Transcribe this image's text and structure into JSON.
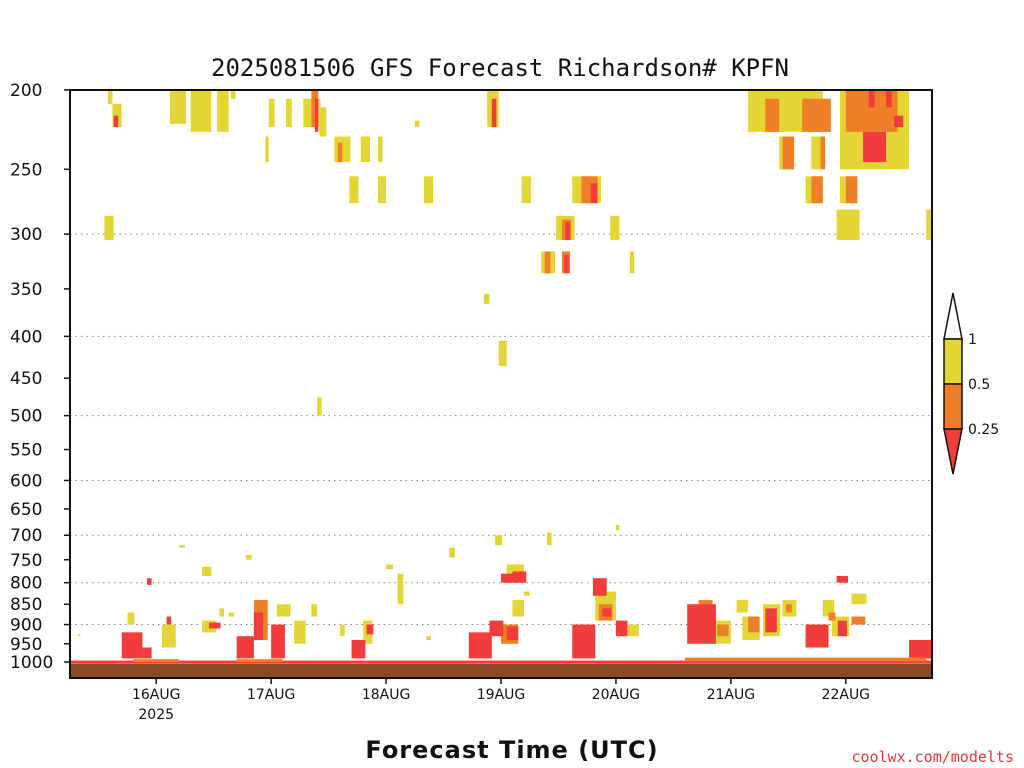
{
  "chart_data": {
    "type": "heatmap",
    "title": "2025081506 GFS Forecast Richardson# KPFN",
    "xlabel": "Forecast Time (UTC)",
    "credit": "coolwx.com/modelts",
    "y_scale": "log-pressure",
    "ylim": [
      1000,
      200
    ],
    "xlim_days": [
      -0.75,
      6.75
    ],
    "y_ticks": [
      200,
      250,
      300,
      350,
      400,
      450,
      500,
      550,
      600,
      650,
      700,
      750,
      800,
      850,
      900,
      950,
      1000
    ],
    "y_grid_levels": [
      300,
      400,
      500,
      600,
      700,
      800,
      900
    ],
    "x_ticks": [
      {
        "day": 0,
        "label": "16AUG",
        "sublabel": "2025"
      },
      {
        "day": 1,
        "label": "17AUG",
        "sublabel": ""
      },
      {
        "day": 2,
        "label": "18AUG",
        "sublabel": ""
      },
      {
        "day": 3,
        "label": "19AUG",
        "sublabel": ""
      },
      {
        "day": 4,
        "label": "20AUG",
        "sublabel": ""
      },
      {
        "day": 5,
        "label": "21AUG",
        "sublabel": ""
      },
      {
        "day": 6,
        "label": "22AUG",
        "sublabel": ""
      }
    ],
    "colorbar": {
      "levels": [
        "1",
        "0.5",
        "0.25"
      ],
      "bands": [
        {
          "range": "0.5-1",
          "color": "#e3d634"
        },
        {
          "range": "0.25-0.5",
          "color": "#ef7f27"
        },
        {
          "range": "<0.25",
          "color": "#f23c3c"
        }
      ],
      "top_color": "#ffffff"
    },
    "ground_color": "#8b4a23",
    "patches": [
      {
        "day": -0.42,
        "w": 0.04,
        "p1": 200,
        "p2": 208,
        "v": "y"
      },
      {
        "day": -0.38,
        "w": 0.08,
        "p1": 208,
        "p2": 222,
        "v": "y"
      },
      {
        "day": -0.37,
        "w": 0.04,
        "p1": 215,
        "p2": 222,
        "v": "r"
      },
      {
        "day": -0.45,
        "w": 0.08,
        "p1": 285,
        "p2": 305,
        "v": "y"
      },
      {
        "day": 0.12,
        "w": 0.14,
        "p1": 200,
        "p2": 220,
        "v": "y"
      },
      {
        "day": 0.3,
        "w": 0.18,
        "p1": 200,
        "p2": 225,
        "v": "y"
      },
      {
        "day": 0.53,
        "w": 0.1,
        "p1": 200,
        "p2": 225,
        "v": "y"
      },
      {
        "day": 0.65,
        "w": 0.04,
        "p1": 200,
        "p2": 205,
        "v": "y"
      },
      {
        "day": 0.98,
        "w": 0.05,
        "p1": 205,
        "p2": 222,
        "v": "y"
      },
      {
        "day": 1.13,
        "w": 0.05,
        "p1": 205,
        "p2": 222,
        "v": "y"
      },
      {
        "day": 1.28,
        "w": 0.15,
        "p1": 205,
        "p2": 222,
        "v": "y"
      },
      {
        "day": 1.35,
        "w": 0.06,
        "p1": 200,
        "p2": 222,
        "v": "o"
      },
      {
        "day": 1.38,
        "w": 0.03,
        "p1": 205,
        "p2": 225,
        "v": "r"
      },
      {
        "day": 1.42,
        "w": 0.06,
        "p1": 210,
        "p2": 228,
        "v": "y"
      },
      {
        "day": 0.95,
        "w": 0.03,
        "p1": 228,
        "p2": 245,
        "v": "y"
      },
      {
        "day": 1.55,
        "w": 0.14,
        "p1": 228,
        "p2": 245,
        "v": "y"
      },
      {
        "day": 1.58,
        "w": 0.04,
        "p1": 232,
        "p2": 245,
        "v": "o"
      },
      {
        "day": 1.78,
        "w": 0.08,
        "p1": 228,
        "p2": 245,
        "v": "y"
      },
      {
        "day": 1.93,
        "w": 0.04,
        "p1": 228,
        "p2": 245,
        "v": "y"
      },
      {
        "day": 1.68,
        "w": 0.08,
        "p1": 255,
        "p2": 275,
        "v": "y"
      },
      {
        "day": 1.93,
        "w": 0.07,
        "p1": 255,
        "p2": 275,
        "v": "y"
      },
      {
        "day": 2.25,
        "w": 0.04,
        "p1": 218,
        "p2": 222,
        "v": "y"
      },
      {
        "day": 2.33,
        "w": 0.08,
        "p1": 255,
        "p2": 275,
        "v": "y"
      },
      {
        "day": 2.88,
        "w": 0.1,
        "p1": 200,
        "p2": 222,
        "v": "y"
      },
      {
        "day": 2.92,
        "w": 0.04,
        "p1": 205,
        "p2": 222,
        "v": "r"
      },
      {
        "day": 3.18,
        "w": 0.08,
        "p1": 255,
        "p2": 275,
        "v": "y"
      },
      {
        "day": 2.85,
        "w": 0.05,
        "p1": 355,
        "p2": 365,
        "v": "y"
      },
      {
        "day": 2.98,
        "w": 0.07,
        "p1": 405,
        "p2": 435,
        "v": "y"
      },
      {
        "day": 1.4,
        "w": 0.04,
        "p1": 475,
        "p2": 500,
        "v": "y"
      },
      {
        "day": 3.62,
        "w": 0.25,
        "p1": 255,
        "p2": 275,
        "v": "y"
      },
      {
        "day": 3.7,
        "w": 0.14,
        "p1": 255,
        "p2": 275,
        "v": "o"
      },
      {
        "day": 3.78,
        "w": 0.06,
        "p1": 260,
        "p2": 275,
        "v": "r"
      },
      {
        "day": 3.48,
        "w": 0.16,
        "p1": 285,
        "p2": 305,
        "v": "y"
      },
      {
        "day": 3.53,
        "w": 0.08,
        "p1": 288,
        "p2": 305,
        "v": "o"
      },
      {
        "day": 3.56,
        "w": 0.04,
        "p1": 290,
        "p2": 305,
        "v": "r"
      },
      {
        "day": 3.35,
        "w": 0.12,
        "p1": 315,
        "p2": 335,
        "v": "y"
      },
      {
        "day": 3.38,
        "w": 0.05,
        "p1": 315,
        "p2": 335,
        "v": "o"
      },
      {
        "day": 3.53,
        "w": 0.07,
        "p1": 315,
        "p2": 335,
        "v": "o"
      },
      {
        "day": 3.55,
        "w": 0.04,
        "p1": 318,
        "p2": 335,
        "v": "r"
      },
      {
        "day": 3.95,
        "w": 0.08,
        "p1": 285,
        "p2": 305,
        "v": "y"
      },
      {
        "day": 4.12,
        "w": 0.04,
        "p1": 315,
        "p2": 335,
        "v": "y"
      },
      {
        "day": 5.15,
        "w": 0.65,
        "p1": 200,
        "p2": 225,
        "v": "y"
      },
      {
        "day": 5.3,
        "w": 0.12,
        "p1": 205,
        "p2": 225,
        "v": "o"
      },
      {
        "day": 5.62,
        "w": 0.25,
        "p1": 205,
        "p2": 225,
        "v": "o"
      },
      {
        "day": 5.42,
        "w": 0.13,
        "p1": 228,
        "p2": 250,
        "v": "y"
      },
      {
        "day": 5.45,
        "w": 0.1,
        "p1": 228,
        "p2": 250,
        "v": "o"
      },
      {
        "day": 5.7,
        "w": 0.12,
        "p1": 228,
        "p2": 250,
        "v": "y"
      },
      {
        "day": 5.78,
        "w": 0.04,
        "p1": 228,
        "p2": 250,
        "v": "o"
      },
      {
        "day": 5.95,
        "w": 0.6,
        "p1": 200,
        "p2": 250,
        "v": "y"
      },
      {
        "day": 6.0,
        "w": 0.45,
        "p1": 200,
        "p2": 225,
        "v": "o"
      },
      {
        "day": 6.2,
        "w": 0.05,
        "p1": 200,
        "p2": 210,
        "v": "r"
      },
      {
        "day": 6.35,
        "w": 0.05,
        "p1": 200,
        "p2": 210,
        "v": "r"
      },
      {
        "day": 6.42,
        "w": 0.08,
        "p1": 215,
        "p2": 222,
        "v": "r"
      },
      {
        "day": 6.15,
        "w": 0.2,
        "p1": 225,
        "p2": 245,
        "v": "r"
      },
      {
        "day": 5.65,
        "w": 0.15,
        "p1": 255,
        "p2": 275,
        "v": "y"
      },
      {
        "day": 5.7,
        "w": 0.1,
        "p1": 255,
        "p2": 275,
        "v": "o"
      },
      {
        "day": 5.95,
        "w": 0.15,
        "p1": 255,
        "p2": 275,
        "v": "y"
      },
      {
        "day": 6.0,
        "w": 0.1,
        "p1": 255,
        "p2": 275,
        "v": "o"
      },
      {
        "day": 5.92,
        "w": 0.2,
        "p1": 280,
        "p2": 305,
        "v": "y"
      },
      {
        "day": 6.7,
        "w": 0.05,
        "p1": 280,
        "p2": 305,
        "v": "y"
      },
      {
        "day": -0.68,
        "w": 0.02,
        "p1": 925,
        "p2": 930,
        "v": "y"
      },
      {
        "day": -0.3,
        "w": 0.18,
        "p1": 920,
        "p2": 990,
        "v": "r"
      },
      {
        "day": -0.25,
        "w": 0.06,
        "p1": 870,
        "p2": 900,
        "v": "y"
      },
      {
        "day": -0.12,
        "w": 0.08,
        "p1": 960,
        "p2": 990,
        "v": "r"
      },
      {
        "day": 0.05,
        "w": 0.12,
        "p1": 900,
        "p2": 960,
        "v": "y"
      },
      {
        "day": 0.09,
        "w": 0.04,
        "p1": 880,
        "p2": 900,
        "v": "r"
      },
      {
        "day": -0.08,
        "w": 0.04,
        "p1": 790,
        "p2": 805,
        "v": "r"
      },
      {
        "day": 0.2,
        "w": 0.05,
        "p1": 720,
        "p2": 725,
        "v": "y"
      },
      {
        "day": 0.4,
        "w": 0.08,
        "p1": 765,
        "p2": 785,
        "v": "y"
      },
      {
        "day": 0.4,
        "w": 0.12,
        "p1": 890,
        "p2": 920,
        "v": "y"
      },
      {
        "day": 0.46,
        "w": 0.1,
        "p1": 895,
        "p2": 910,
        "v": "r"
      },
      {
        "day": 0.55,
        "w": 0.04,
        "p1": 860,
        "p2": 880,
        "v": "y"
      },
      {
        "day": 0.63,
        "w": 0.05,
        "p1": 870,
        "p2": 880,
        "v": "y"
      },
      {
        "day": 0.7,
        "w": 0.15,
        "p1": 930,
        "p2": 990,
        "v": "r"
      },
      {
        "day": 0.78,
        "w": 0.05,
        "p1": 740,
        "p2": 750,
        "v": "y"
      },
      {
        "day": 0.85,
        "w": 0.12,
        "p1": 840,
        "p2": 940,
        "v": "o"
      },
      {
        "day": 0.85,
        "w": 0.08,
        "p1": 870,
        "p2": 940,
        "v": "r"
      },
      {
        "day": 1.0,
        "w": 0.12,
        "p1": 900,
        "p2": 990,
        "v": "r"
      },
      {
        "day": 1.05,
        "w": 0.12,
        "p1": 850,
        "p2": 880,
        "v": "y"
      },
      {
        "day": 1.2,
        "w": 0.1,
        "p1": 890,
        "p2": 950,
        "v": "y"
      },
      {
        "day": 1.35,
        "w": 0.05,
        "p1": 850,
        "p2": 880,
        "v": "y"
      },
      {
        "day": 1.6,
        "w": 0.04,
        "p1": 900,
        "p2": 930,
        "v": "y"
      },
      {
        "day": 1.7,
        "w": 0.12,
        "p1": 940,
        "p2": 990,
        "v": "r"
      },
      {
        "day": 1.8,
        "w": 0.08,
        "p1": 890,
        "p2": 950,
        "v": "y"
      },
      {
        "day": 1.83,
        "w": 0.06,
        "p1": 900,
        "p2": 925,
        "v": "r"
      },
      {
        "day": 2.0,
        "w": 0.06,
        "p1": 760,
        "p2": 770,
        "v": "y"
      },
      {
        "day": 2.1,
        "w": 0.05,
        "p1": 780,
        "p2": 850,
        "v": "y"
      },
      {
        "day": 2.35,
        "w": 0.04,
        "p1": 930,
        "p2": 940,
        "v": "y"
      },
      {
        "day": 2.55,
        "w": 0.05,
        "p1": 725,
        "p2": 745,
        "v": "y"
      },
      {
        "day": 2.72,
        "w": 0.2,
        "p1": 920,
        "p2": 990,
        "v": "r"
      },
      {
        "day": 2.9,
        "w": 0.12,
        "p1": 890,
        "p2": 930,
        "v": "r"
      },
      {
        "day": 3.0,
        "w": 0.15,
        "p1": 900,
        "p2": 950,
        "v": "o"
      },
      {
        "day": 3.05,
        "w": 0.1,
        "p1": 905,
        "p2": 940,
        "v": "r"
      },
      {
        "day": 3.0,
        "w": 0.1,
        "p1": 780,
        "p2": 800,
        "v": "r"
      },
      {
        "day": 3.05,
        "w": 0.15,
        "p1": 760,
        "p2": 800,
        "v": "y"
      },
      {
        "day": 3.1,
        "w": 0.12,
        "p1": 775,
        "p2": 800,
        "v": "r"
      },
      {
        "day": 3.1,
        "w": 0.1,
        "p1": 840,
        "p2": 880,
        "v": "y"
      },
      {
        "day": 3.2,
        "w": 0.05,
        "p1": 820,
        "p2": 830,
        "v": "y"
      },
      {
        "day": 2.95,
        "w": 0.06,
        "p1": 700,
        "p2": 720,
        "v": "y"
      },
      {
        "day": 3.4,
        "w": 0.04,
        "p1": 695,
        "p2": 720,
        "v": "y"
      },
      {
        "day": 3.62,
        "w": 0.2,
        "p1": 900,
        "p2": 990,
        "v": "r"
      },
      {
        "day": 3.8,
        "w": 0.12,
        "p1": 790,
        "p2": 830,
        "v": "r"
      },
      {
        "day": 3.82,
        "w": 0.18,
        "p1": 820,
        "p2": 890,
        "v": "y"
      },
      {
        "day": 3.85,
        "w": 0.12,
        "p1": 850,
        "p2": 890,
        "v": "o"
      },
      {
        "day": 3.88,
        "w": 0.08,
        "p1": 860,
        "p2": 880,
        "v": "r"
      },
      {
        "day": 4.0,
        "w": 0.1,
        "p1": 890,
        "p2": 930,
        "v": "r"
      },
      {
        "day": 4.05,
        "w": 0.15,
        "p1": 900,
        "p2": 930,
        "v": "y"
      },
      {
        "day": 4.0,
        "w": 0.03,
        "p1": 680,
        "p2": 690,
        "v": "y"
      },
      {
        "day": 4.62,
        "w": 0.25,
        "p1": 850,
        "p2": 950,
        "v": "r"
      },
      {
        "day": 4.72,
        "w": 0.12,
        "p1": 840,
        "p2": 870,
        "v": "o"
      },
      {
        "day": 4.82,
        "w": 0.18,
        "p1": 890,
        "p2": 950,
        "v": "y"
      },
      {
        "day": 4.88,
        "w": 0.1,
        "p1": 900,
        "p2": 930,
        "v": "o"
      },
      {
        "day": 5.05,
        "w": 0.1,
        "p1": 840,
        "p2": 870,
        "v": "y"
      },
      {
        "day": 5.1,
        "w": 0.15,
        "p1": 880,
        "p2": 940,
        "v": "y"
      },
      {
        "day": 5.15,
        "w": 0.1,
        "p1": 880,
        "p2": 920,
        "v": "o"
      },
      {
        "day": 5.28,
        "w": 0.15,
        "p1": 850,
        "p2": 930,
        "v": "y"
      },
      {
        "day": 5.3,
        "w": 0.1,
        "p1": 860,
        "p2": 920,
        "v": "r"
      },
      {
        "day": 5.45,
        "w": 0.12,
        "p1": 840,
        "p2": 880,
        "v": "y"
      },
      {
        "day": 5.48,
        "w": 0.05,
        "p1": 850,
        "p2": 870,
        "v": "o"
      },
      {
        "day": 5.65,
        "w": 0.2,
        "p1": 900,
        "p2": 960,
        "v": "r"
      },
      {
        "day": 5.7,
        "w": 0.1,
        "p1": 910,
        "p2": 930,
        "v": "y"
      },
      {
        "day": 5.8,
        "w": 0.1,
        "p1": 840,
        "p2": 880,
        "v": "y"
      },
      {
        "day": 5.85,
        "w": 0.06,
        "p1": 870,
        "p2": 890,
        "v": "o"
      },
      {
        "day": 5.88,
        "w": 0.15,
        "p1": 880,
        "p2": 930,
        "v": "y"
      },
      {
        "day": 5.93,
        "w": 0.08,
        "p1": 890,
        "p2": 930,
        "v": "r"
      },
      {
        "day": 5.92,
        "w": 0.1,
        "p1": 785,
        "p2": 800,
        "v": "r"
      },
      {
        "day": 6.05,
        "w": 0.13,
        "p1": 825,
        "p2": 850,
        "v": "y"
      },
      {
        "day": 6.05,
        "w": 0.12,
        "p1": 880,
        "p2": 900,
        "v": "o"
      },
      {
        "day": 6.55,
        "w": 0.2,
        "p1": 940,
        "p2": 990,
        "v": "r"
      },
      {
        "day": 6.6,
        "w": 0.15,
        "p1": 950,
        "p2": 990,
        "v": "y"
      },
      {
        "day": 6.65,
        "w": 0.1,
        "p1": 955,
        "p2": 985,
        "v": "o"
      }
    ],
    "surface_strips": [
      {
        "day": -0.75,
        "w": 7.5,
        "p1": 996,
        "p2": 1005,
        "v": "r"
      },
      {
        "day": -0.2,
        "w": 0.4,
        "p1": 992,
        "p2": 1000,
        "v": "o"
      },
      {
        "day": 0.7,
        "w": 0.4,
        "p1": 992,
        "p2": 1000,
        "v": "o"
      },
      {
        "day": 4.6,
        "w": 2.1,
        "p1": 988,
        "p2": 998,
        "v": "o"
      }
    ]
  }
}
